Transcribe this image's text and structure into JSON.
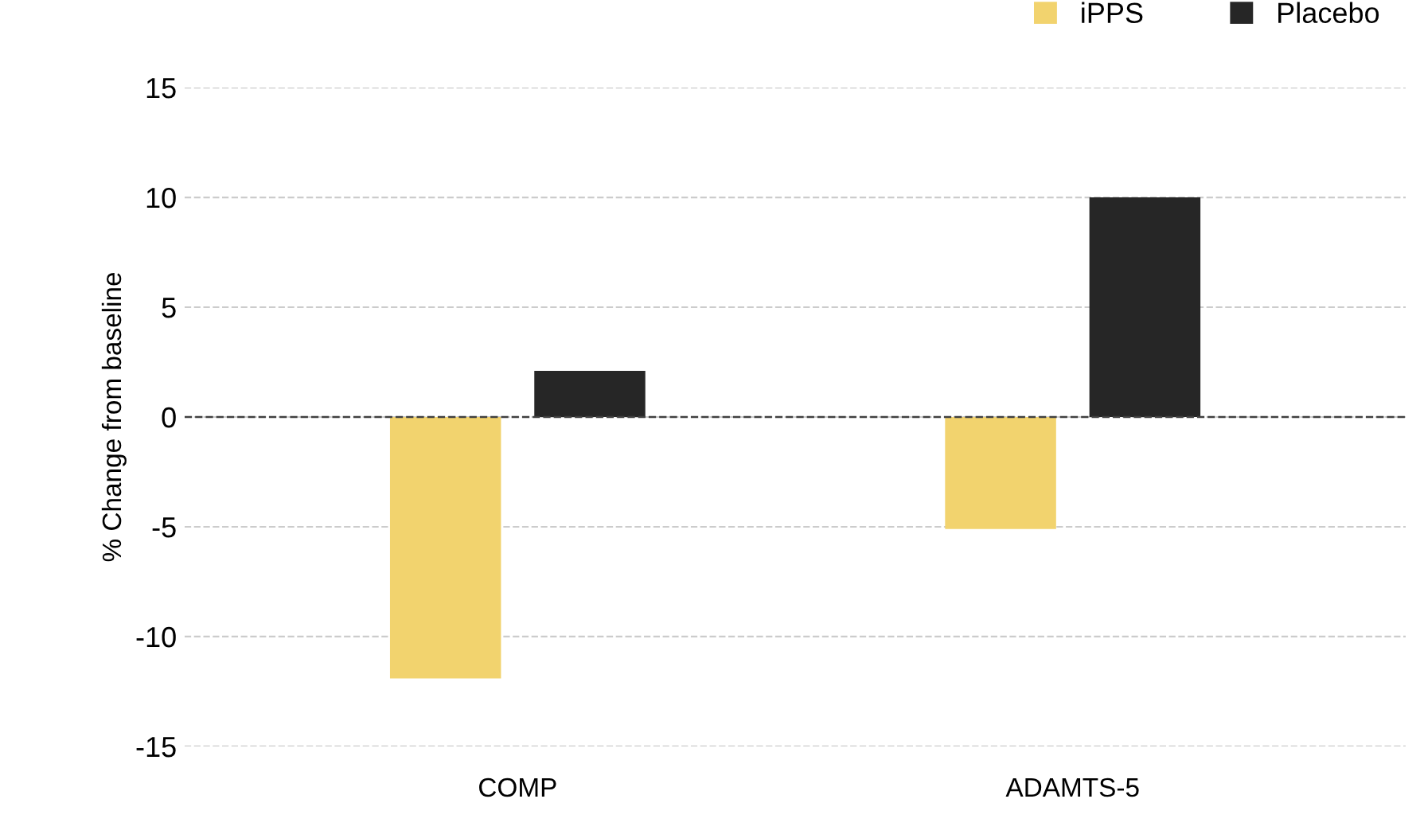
{
  "chart_data": {
    "type": "bar",
    "ylabel": "% Change from baseline",
    "categories": [
      "COMP",
      "ADAMTS-5"
    ],
    "series": [
      {
        "name": "iPPS",
        "color": "#f2d36e",
        "values": [
          -11.9,
          -5.1
        ]
      },
      {
        "name": "Placebo",
        "color": "#262626",
        "values": [
          2.1,
          10.0
        ]
      }
    ],
    "ylim": [
      -15,
      15
    ],
    "yticks": [
      -15,
      -10,
      -5,
      0,
      5,
      10,
      15
    ],
    "grid": "y",
    "legend": "top right",
    "ref_lines": [
      {
        "axis": "y",
        "value": 0,
        "label": null,
        "color": "#404040",
        "line_style": "dashed"
      }
    ]
  }
}
